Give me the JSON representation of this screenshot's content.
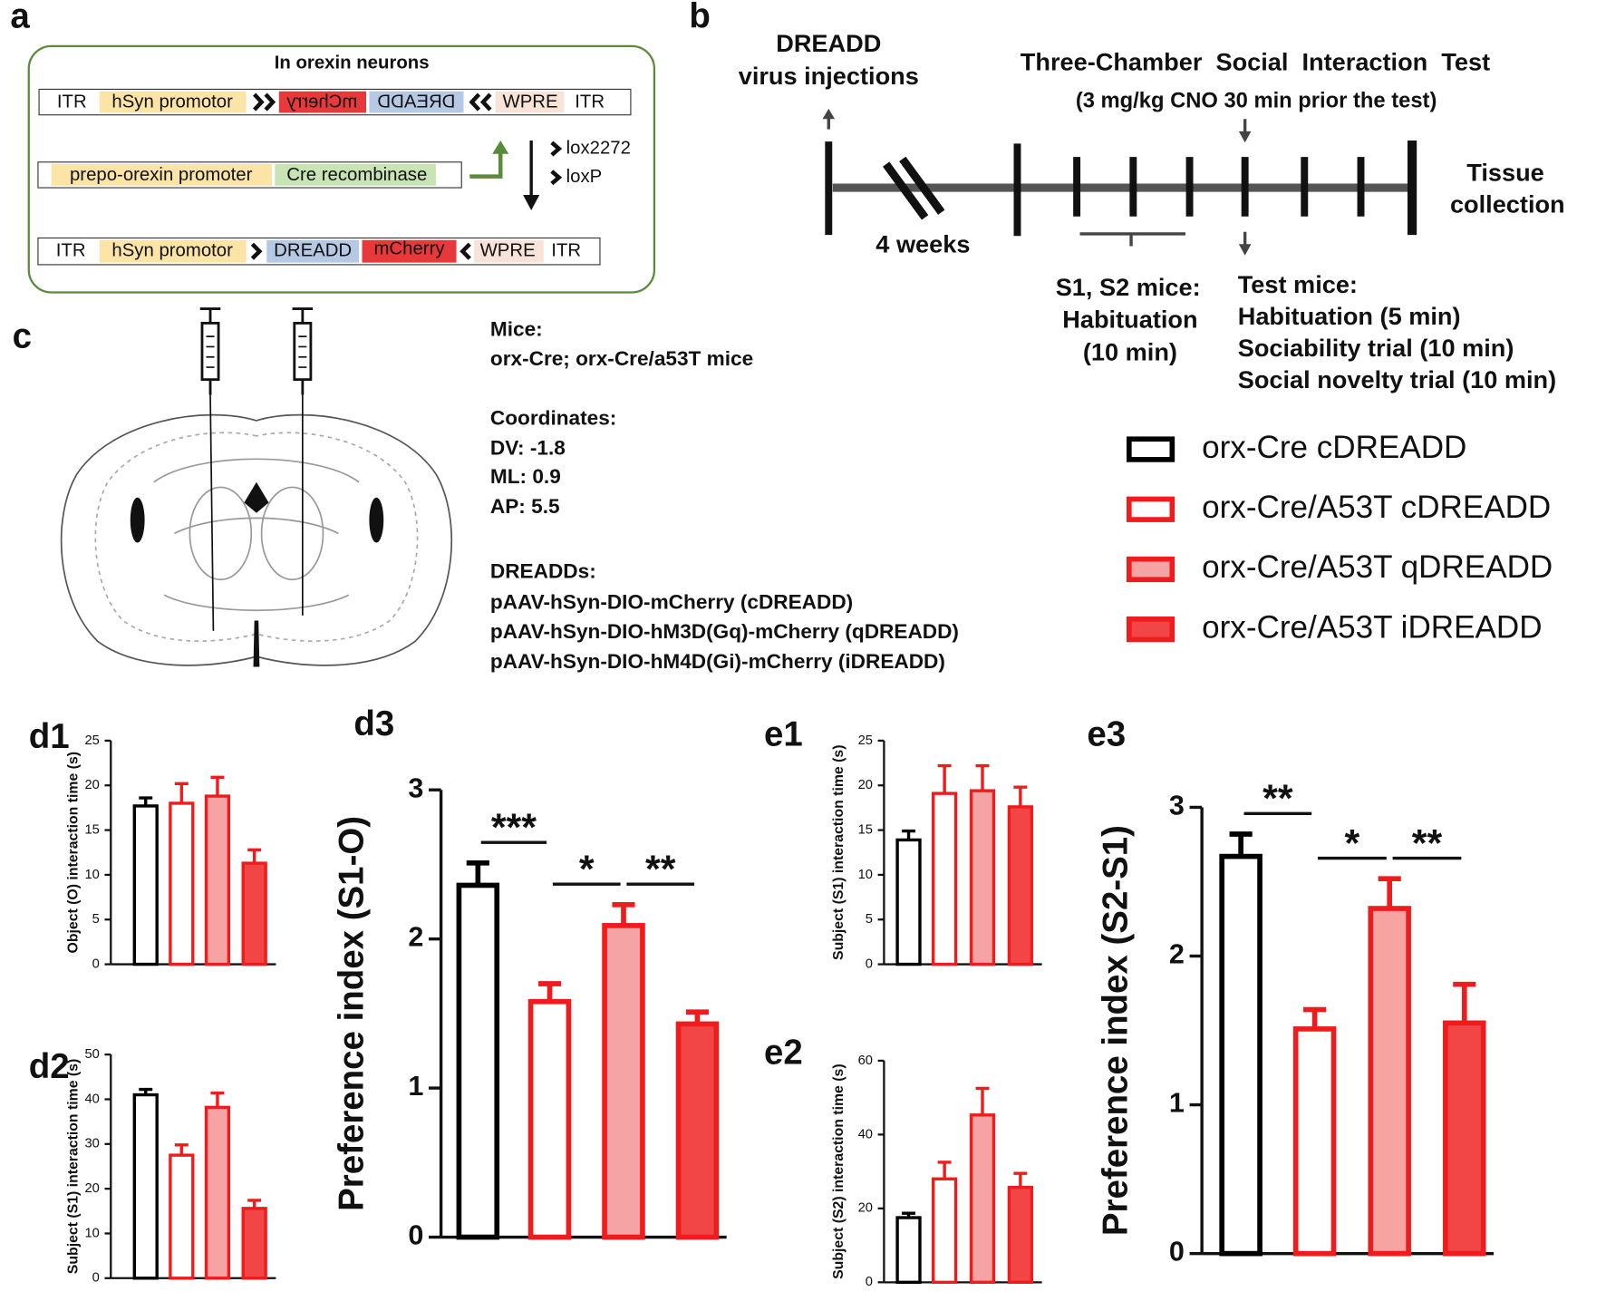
{
  "panel_a": {
    "label": "a",
    "title": "In orexin neurons",
    "construct1": [
      "ITR",
      "hSyn promotor",
      "mCherry",
      "DREADD",
      "WPRE",
      "ITR"
    ],
    "construct2": [
      "prepo-orexin promoter",
      "Cre recombinase"
    ],
    "sites": [
      "lox2272",
      "loxP"
    ],
    "construct3": [
      "ITR",
      "hSyn promotor",
      "DREADD",
      "mCherry",
      "WPRE",
      "ITR"
    ]
  },
  "panel_b": {
    "label": "b",
    "injection": [
      "DREADD",
      "virus injections"
    ],
    "test_title": "Three-Chamber  Social  Interaction  Test",
    "cno": "(3 mg/kg CNO 30 min prior the test)",
    "duration": "4 weeks",
    "end": [
      "Tissue",
      "collection"
    ],
    "habituation": [
      "S1, S2 mice:",
      "Habituation",
      "(10 min)"
    ],
    "test_mice": [
      "Test mice:",
      "Habituation (5 min)",
      "Sociability trial (10 min)",
      "Social novelty trial (10 min)"
    ]
  },
  "panel_c": {
    "label": "c",
    "mice_heading": "Mice:",
    "mice": "orx-Cre; orx-Cre/a53T mice",
    "coord_heading": "Coordinates:",
    "coords": [
      "DV: -1.8",
      "ML: 0.9",
      "AP: 5.5"
    ],
    "dreadd_heading": "DREADDs:",
    "dreadds": [
      "pAAV-hSyn-DIO-mCherry (cDREADD)",
      "pAAV-hSyn-DIO-hM3D(Gq)-mCherry (qDREADD)",
      "pAAV-hSyn-DIO-hM4D(Gi)-mCherry (iDREADD)"
    ]
  },
  "legend": [
    {
      "name": "orx-Cre cDREADD",
      "fill": "#ffffff",
      "stroke": "#000000"
    },
    {
      "name": "orx-Cre/A53T cDREADD",
      "fill": "#ffffff",
      "stroke": "#ee1c1c"
    },
    {
      "name": "orx-Cre/A53T qDREADD",
      "fill": "#f5a3a3",
      "stroke": "#ee1c1c"
    },
    {
      "name": "orx-Cre/A53T iDREADD",
      "fill": "#f24545",
      "stroke": "#ee1c1c"
    }
  ],
  "chart_data": [
    {
      "type": "bar",
      "label": "d1",
      "ylabel": "Object (O) interaction time (s)",
      "ylim": [
        0,
        25
      ],
      "yticks": [
        0,
        5,
        10,
        15,
        20,
        25
      ],
      "values": [
        17.7,
        18.0,
        18.8,
        11.3
      ],
      "errors": [
        0.9,
        2.2,
        2.1,
        1.5
      ]
    },
    {
      "type": "bar",
      "label": "d2",
      "ylabel": "Subject (S1) interaction time (s)",
      "ylim": [
        0,
        50
      ],
      "yticks": [
        0,
        10,
        20,
        30,
        40,
        50
      ],
      "values": [
        41.0,
        27.5,
        38.2,
        15.6
      ],
      "errors": [
        1.2,
        2.3,
        3.2,
        1.8
      ]
    },
    {
      "type": "bar",
      "label": "d3",
      "ylabel": "Preference index (S1-O)",
      "ylim": [
        0,
        3
      ],
      "yticks": [
        0,
        1,
        2,
        3
      ],
      "values": [
        2.36,
        1.58,
        2.09,
        1.43
      ],
      "errors": [
        0.15,
        0.12,
        0.14,
        0.08
      ],
      "significance": [
        "***",
        "*",
        "**"
      ]
    },
    {
      "type": "bar",
      "label": "e1",
      "ylabel": "Subject (S1) interaction time (s)",
      "ylim": [
        0,
        25
      ],
      "yticks": [
        0,
        5,
        10,
        15,
        20,
        25
      ],
      "values": [
        13.9,
        19.1,
        19.4,
        17.6
      ],
      "errors": [
        1.0,
        3.1,
        2.8,
        2.2
      ]
    },
    {
      "type": "bar",
      "label": "e2",
      "ylabel": "Subject (S2) interaction time (s)",
      "ylim": [
        0,
        60
      ],
      "yticks": [
        0,
        20,
        40,
        60
      ],
      "values": [
        17.5,
        28.0,
        45.3,
        25.7
      ],
      "errors": [
        1.2,
        4.5,
        7.2,
        3.8
      ]
    },
    {
      "type": "bar",
      "label": "e3",
      "ylabel": "Preference index (S2-S1)",
      "ylim": [
        0,
        3
      ],
      "yticks": [
        0,
        1,
        2,
        3
      ],
      "values": [
        2.67,
        1.51,
        2.32,
        1.55
      ],
      "errors": [
        0.15,
        0.13,
        0.2,
        0.26
      ],
      "significance": [
        "**",
        "*",
        "**"
      ]
    }
  ]
}
